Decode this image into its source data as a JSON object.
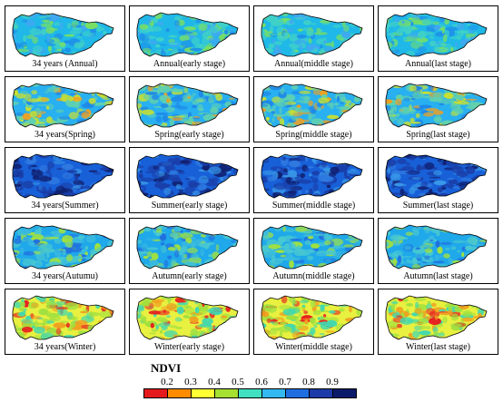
{
  "rows": [
    {
      "season": "annual",
      "palette": [
        "#1fb8e8",
        "#3fd0c8",
        "#7ae060",
        "#1e90e8",
        "#40a8f0"
      ],
      "captions": [
        "34 years (Annual)",
        "Annual(early stage)",
        "Annual(middle stage)",
        "Annual(last stage)"
      ]
    },
    {
      "season": "spring",
      "palette": [
        "#28b0f0",
        "#5fd0b0",
        "#c8e030",
        "#f0a020",
        "#1e88e8"
      ],
      "captions": [
        "34 years(Spring)",
        "Spring(early stage)",
        "Spring(middle stage)",
        "Spring(last stage)"
      ]
    },
    {
      "season": "summer",
      "palette": [
        "#1860d8",
        "#1a3ea8",
        "#102070",
        "#2f7ae0",
        "#3898e8"
      ],
      "captions": [
        "34 years(Summer)",
        "Summer(early stage)",
        "Summer(middle stage)",
        "Summer(last stage)"
      ]
    },
    {
      "season": "autumn",
      "palette": [
        "#1fa8ea",
        "#48c8d0",
        "#a0e040",
        "#2070e0",
        "#38b8e0"
      ],
      "captions": [
        "34 years(Autumu)",
        "Autumn(early stage)",
        "Autumn(middle stage)",
        "Autumn(last stage)"
      ]
    },
    {
      "season": "winter",
      "palette": [
        "#e8f040",
        "#a0e040",
        "#40d8b0",
        "#e82020",
        "#f0a020"
      ],
      "captions": [
        "34 years(Winter)",
        "Winter(early stage)",
        "Winter(middle stage)",
        "Winter(last stage)"
      ]
    }
  ],
  "legend": {
    "title": "NDVI",
    "ticks": [
      "0.2",
      "0.3",
      "0.4",
      "0.5",
      "0.6",
      "0.7",
      "0.8",
      "0.9"
    ],
    "colors": [
      "#e41a1c",
      "#ff8c00",
      "#ffff33",
      "#a6e030",
      "#40e0c0",
      "#33b8f0",
      "#1e6ee0",
      "#1c3aa8",
      "#0c1a6a"
    ]
  }
}
